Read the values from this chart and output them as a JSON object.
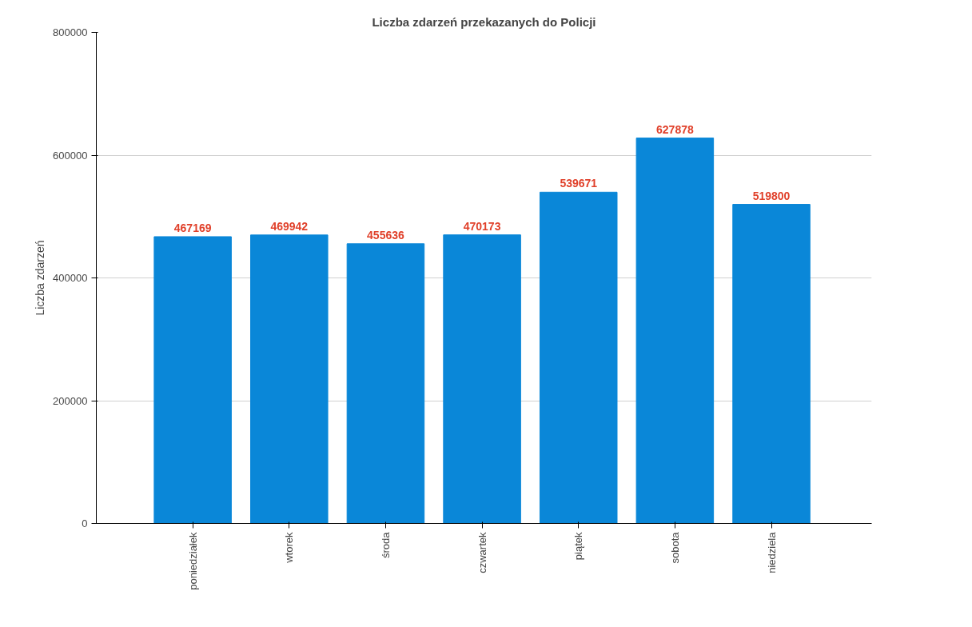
{
  "chart_data": {
    "type": "bar",
    "title": "Liczba zdarzeń przekazanych do Policji",
    "ylabel": "Liczba zdarzeń",
    "categories": [
      "poniedziałek",
      "wtorek",
      "środa",
      "czwartek",
      "piątek",
      "sobota",
      "niedziela"
    ],
    "values": [
      467169,
      469942,
      455636,
      470173,
      539671,
      627878,
      519800
    ],
    "color": "#0a87d8",
    "ylim": [
      0,
      800000
    ],
    "yticks": [
      0,
      200000,
      400000,
      600000,
      800000
    ],
    "grid": "y",
    "data_labels": true
  }
}
